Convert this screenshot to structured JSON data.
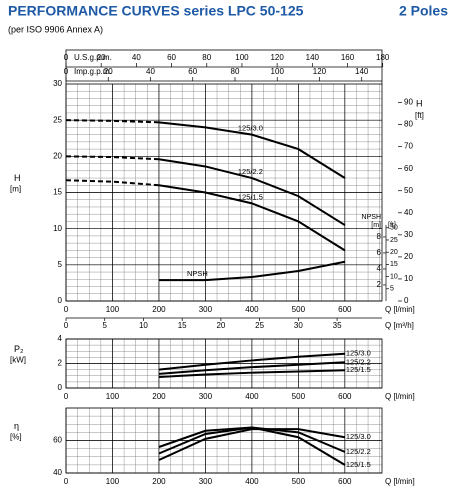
{
  "header": {
    "title": "PERFORMANCE CURVES series LPC 50-125",
    "poles": "2 Poles",
    "subtitle": "(per ISO 9906 Annex A)"
  },
  "chart_data": [
    {
      "type": "line",
      "x_label": "Q [l/min]",
      "y_label": "H",
      "y_unit": "[m]",
      "y2_label": "H",
      "y2_unit": "[ft]",
      "xlim": [
        0,
        680
      ],
      "xticks": [
        0,
        100,
        200,
        300,
        400,
        500,
        600
      ],
      "ylim": [
        0,
        30
      ],
      "yticks": [
        0,
        5,
        10,
        15,
        20,
        25,
        30
      ],
      "y2lim": [
        0,
        98.4
      ],
      "y2ticks": [
        0,
        10,
        20,
        30,
        40,
        50,
        60,
        70,
        80,
        90
      ],
      "grid": true,
      "minor_grid": {
        "x": 25,
        "y": 1
      },
      "dashed_until_x": 200,
      "top_axes": [
        {
          "label": "U.S.g.p.m.",
          "lim": [
            0,
            179.6
          ],
          "ticks": [
            0,
            20,
            40,
            60,
            80,
            100,
            120,
            140,
            160,
            180
          ]
        },
        {
          "label": "Imp.g.p.m.",
          "lim": [
            0,
            149.6
          ],
          "ticks": [
            0,
            20,
            40,
            60,
            80,
            100,
            120,
            140
          ]
        }
      ],
      "bottom_axis2": {
        "label": "Q [m³/h]",
        "lim": [
          0,
          40.8
        ],
        "ticks": [
          0,
          5,
          10,
          15,
          20,
          25,
          30,
          35
        ]
      },
      "npsh_axis": {
        "label": "NPSH",
        "unit": "[m]",
        "unit2": "[ft]",
        "lim": [
          0,
          27.1
        ],
        "ticks": [
          2,
          4,
          6,
          8
        ],
        "lim2": [
          0,
          88.9
        ],
        "ticks2": [
          5,
          10,
          15,
          20,
          25,
          30
        ]
      },
      "series": [
        {
          "name": "125/3.0",
          "color": "#000000",
          "x": [
            0,
            100,
            200,
            300,
            400,
            500,
            600
          ],
          "values": [
            25,
            24.9,
            24.7,
            24,
            23,
            21,
            17
          ]
        },
        {
          "name": "125/2.2",
          "color": "#000000",
          "x": [
            0,
            100,
            200,
            300,
            400,
            500,
            600
          ],
          "values": [
            20,
            19.9,
            19.6,
            18.6,
            17,
            14.5,
            10.5
          ]
        },
        {
          "name": "125/1.5",
          "color": "#000000",
          "x": [
            0,
            100,
            200,
            300,
            400,
            500,
            600
          ],
          "values": [
            16.7,
            16.5,
            16,
            15,
            13.5,
            11,
            7
          ]
        },
        {
          "name": "NPSH",
          "color": "#000000",
          "axis": "npsh",
          "x": [
            200,
            300,
            400,
            500,
            600
          ],
          "values": [
            2.6,
            2.6,
            3,
            3.75,
            4.9
          ]
        }
      ]
    },
    {
      "type": "line",
      "x_label": "Q [l/min]",
      "y_label": "P₂",
      "y_unit": "[kW]",
      "xlim": [
        0,
        680
      ],
      "xticks": [
        0,
        100,
        200,
        300,
        400,
        500,
        600
      ],
      "ylim": [
        0,
        4
      ],
      "yticks": [
        0,
        2,
        4
      ],
      "grid": true,
      "minor_grid": {
        "x": 25,
        "y": 0.5
      },
      "series": [
        {
          "name": "125/3.0",
          "color": "#000000",
          "x": [
            200,
            300,
            400,
            500,
            600
          ],
          "values": [
            1.5,
            1.9,
            2.25,
            2.55,
            2.8
          ]
        },
        {
          "name": "125/2.2",
          "color": "#000000",
          "x": [
            200,
            300,
            400,
            500,
            600
          ],
          "values": [
            1.15,
            1.45,
            1.7,
            1.9,
            2.1
          ]
        },
        {
          "name": "125/1.5",
          "color": "#000000",
          "x": [
            200,
            300,
            400,
            500,
            600
          ],
          "values": [
            0.9,
            1.1,
            1.25,
            1.35,
            1.45
          ]
        }
      ]
    },
    {
      "type": "line",
      "x_label": "Q [l/min]",
      "y_label": "η",
      "y_unit": "[%]",
      "xlim": [
        0,
        680
      ],
      "xticks": [
        0,
        100,
        200,
        300,
        400,
        500,
        600
      ],
      "ylim": [
        40,
        80
      ],
      "yticks": [
        40,
        60
      ],
      "grid": true,
      "minor_grid": {
        "x": 25,
        "y": 5
      },
      "series": [
        {
          "name": "125/3.0",
          "color": "#000000",
          "x": [
            200,
            300,
            400,
            500,
            600
          ],
          "values": [
            48,
            61,
            67,
            67,
            62
          ]
        },
        {
          "name": "125/2.2",
          "color": "#000000",
          "x": [
            200,
            300,
            400,
            500,
            600
          ],
          "values": [
            52,
            64,
            68,
            65,
            53
          ]
        },
        {
          "name": "125/1.5",
          "color": "#000000",
          "x": [
            200,
            300,
            400,
            500,
            600
          ],
          "values": [
            56,
            66,
            68,
            62,
            45
          ]
        }
      ]
    }
  ]
}
